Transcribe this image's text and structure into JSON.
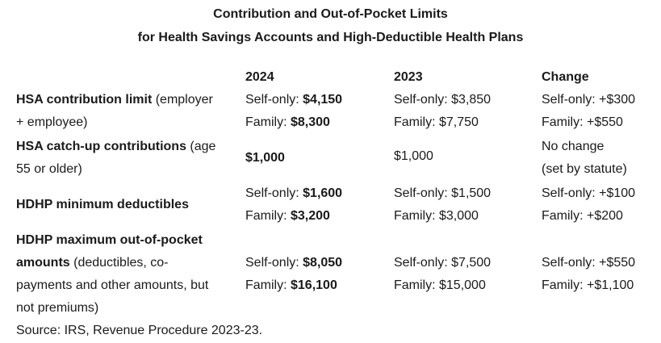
{
  "title_line1": "Contribution and Out-of-Pocket Limits",
  "title_line2": "for Health Savings Accounts and High-Deductible Health Plans",
  "columns": {
    "c2024": "2024",
    "c2023": "2023",
    "change": "Change"
  },
  "rows": [
    {
      "label_bold": "HSA contribution limit",
      "label_rest_1": " (employer",
      "label_rest_2": "+ employee)",
      "v2024_a_pre": "Self-only: ",
      "v2024_a_bold": "$4,150",
      "v2024_b_pre": "Family: ",
      "v2024_b_bold": "$8,300",
      "v2023_a": "Self-only: $3,850",
      "v2023_b": "Family: $7,750",
      "change_a": "Self-only: +$300",
      "change_b": "Family: +$550"
    },
    {
      "label_bold": "HSA catch-up contributions",
      "label_rest_1": " (age",
      "label_rest_2": "55 or older)",
      "v2024": "$1,000",
      "v2023": "$1,000",
      "change_a": "No change",
      "change_b": "(set by statute)"
    },
    {
      "label_bold": "HDHP minimum deductibles",
      "v2024_a_pre": "Self-only: ",
      "v2024_a_bold": "$1,600",
      "v2024_b_pre": "Family: ",
      "v2024_b_bold": "$3,200",
      "v2023_a": "Self-only: $1,500",
      "v2023_b": "Family: $3,000",
      "change_a": "Self-only: +$100",
      "change_b": "Family: +$200"
    },
    {
      "label_bold_1": "HDHP maximum out-of-pocket",
      "label_bold_2": "amounts",
      "label_rest_2": " (deductibles, co-",
      "label_rest_3": "payments and other amounts, but",
      "label_rest_4": "not premiums)",
      "v2024_a_pre": "Self-only: ",
      "v2024_a_bold": "$8,050",
      "v2024_b_pre": "Family: ",
      "v2024_b_bold": "$16,100",
      "v2023_a": "Self-only: $7,500",
      "v2023_b": "Family: $15,000",
      "change_a": "Self-only: +$550",
      "change_b": "Family: +$1,100"
    }
  ],
  "source": "Source: IRS, Revenue Procedure 2023-23."
}
